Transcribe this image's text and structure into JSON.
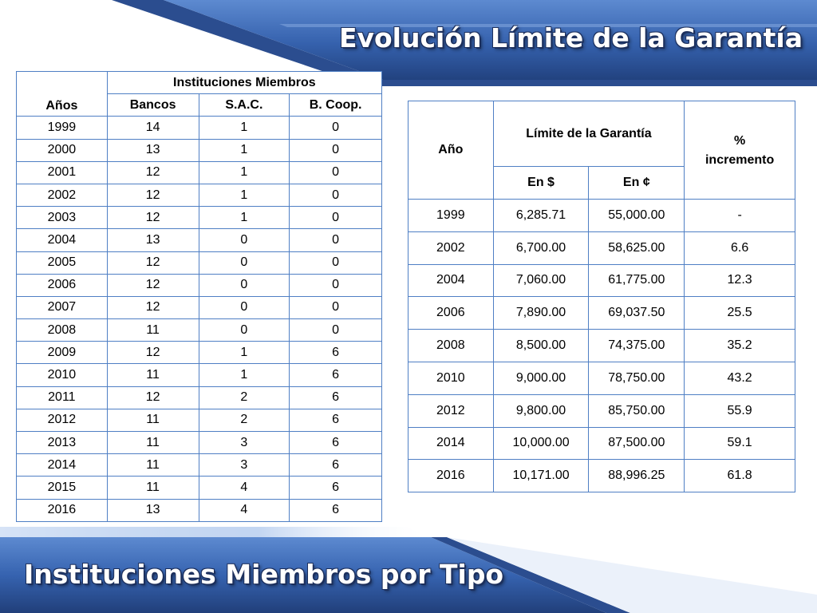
{
  "header": {
    "title": "Evolución Límite de la Garantía"
  },
  "footer": {
    "title": "Instituciones Miembros por Tipo"
  },
  "members_table": {
    "year_header": "Años",
    "group_header": "Instituciones Miembros",
    "columns": [
      "Bancos",
      "S.A.C.",
      "B. Coop."
    ],
    "rows": [
      [
        "1999",
        "14",
        "1",
        "0"
      ],
      [
        "2000",
        "13",
        "1",
        "0"
      ],
      [
        "2001",
        "12",
        "1",
        "0"
      ],
      [
        "2002",
        "12",
        "1",
        "0"
      ],
      [
        "2003",
        "12",
        "1",
        "0"
      ],
      [
        "2004",
        "13",
        "0",
        "0"
      ],
      [
        "2005",
        "12",
        "0",
        "0"
      ],
      [
        "2006",
        "12",
        "0",
        "0"
      ],
      [
        "2007",
        "12",
        "0",
        "0"
      ],
      [
        "2008",
        "11",
        "0",
        "0"
      ],
      [
        "2009",
        "12",
        "1",
        "6"
      ],
      [
        "2010",
        "11",
        "1",
        "6"
      ],
      [
        "2011",
        "12",
        "2",
        "6"
      ],
      [
        "2012",
        "11",
        "2",
        "6"
      ],
      [
        "2013",
        "11",
        "3",
        "6"
      ],
      [
        "2014",
        "11",
        "3",
        "6"
      ],
      [
        "2015",
        "11",
        "4",
        "6"
      ],
      [
        "2016",
        "13",
        "4",
        "6"
      ]
    ]
  },
  "guarantee_table": {
    "year_header": "Año",
    "group_header": "Límite de la Garantía",
    "pct_header_line1": "%",
    "pct_header_line2": "incremento",
    "sub_columns": [
      "En $",
      "En ¢"
    ],
    "rows": [
      [
        "1999",
        "6,285.71",
        "55,000.00",
        "-"
      ],
      [
        "2002",
        "6,700.00",
        "58,625.00",
        "6.6"
      ],
      [
        "2004",
        "7,060.00",
        "61,775.00",
        "12.3"
      ],
      [
        "2006",
        "7,890.00",
        "69,037.50",
        "25.5"
      ],
      [
        "2008",
        "8,500.00",
        "74,375.00",
        "35.2"
      ],
      [
        "2010",
        "9,000.00",
        "78,750.00",
        "43.2"
      ],
      [
        "2012",
        "9,800.00",
        "85,750.00",
        "55.9"
      ],
      [
        "2014",
        "10,000.00",
        "87,500.00",
        "59.1"
      ],
      [
        "2016",
        "10,171.00",
        "88,996.25",
        "61.8"
      ]
    ]
  },
  "colors": {
    "banner_dark": "#2a4a8c",
    "banner_mid": "#4a78c2",
    "banner_light": "#7aa6e0",
    "table_border": "#4f7fc4"
  }
}
